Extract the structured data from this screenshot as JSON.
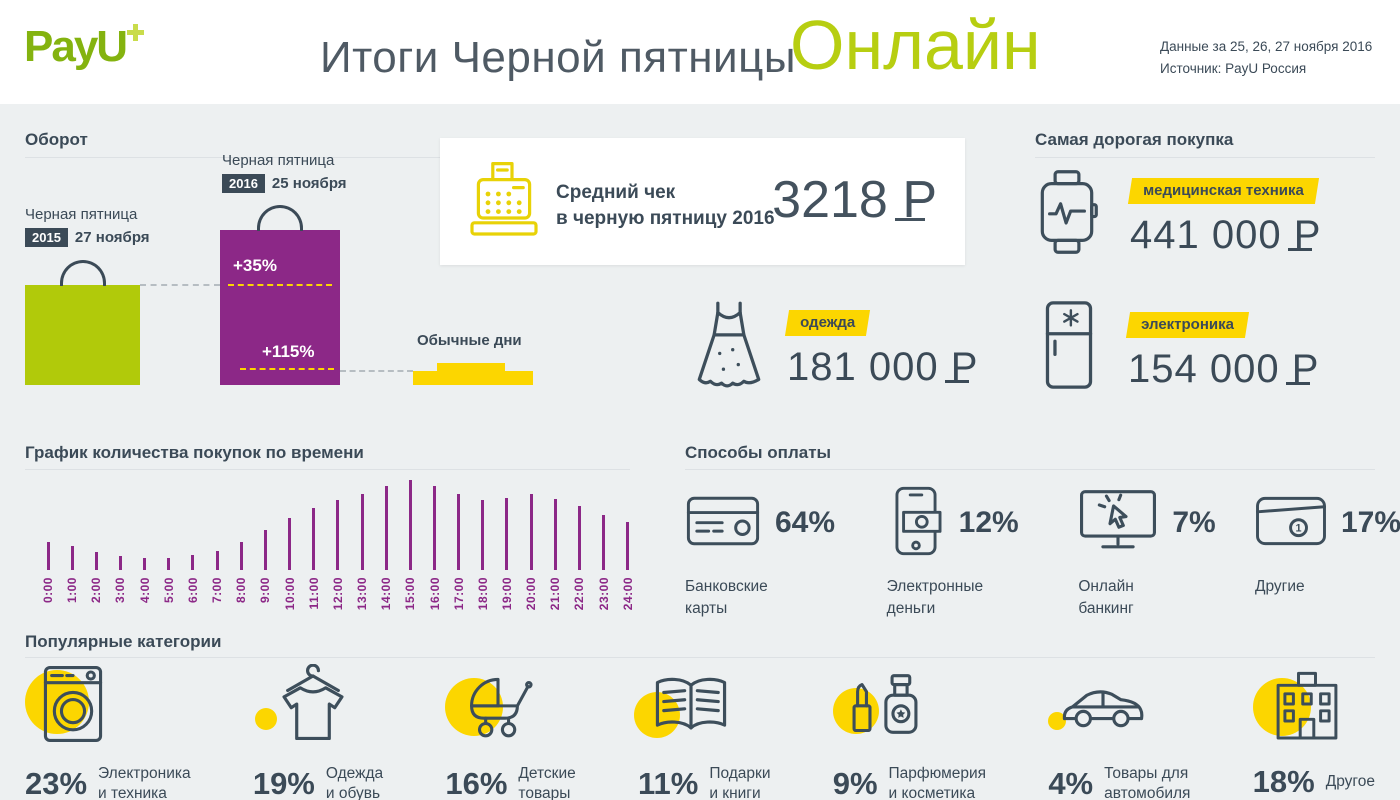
{
  "header": {
    "logo_text": "PayU",
    "title": "Итоги Черной пятницы",
    "title_accent": "Онлайн",
    "meta_line1": "Данные за 25, 26, 27 ноября 2016",
    "meta_line2": "Источник: PayU  Россия"
  },
  "turnover": {
    "title": "Оборот",
    "bf2015": {
      "label": "Черная пятница",
      "year": "2015",
      "date": "27 ноября"
    },
    "bf2016": {
      "label": "Черная пятница",
      "year": "2016",
      "date": "25 ноября"
    },
    "growth_vs_2015": "+35%",
    "growth_vs_regular": "+115%",
    "regular_label": "Обычные дни"
  },
  "avg_check": {
    "label_line1": "Средний чек",
    "label_line2": "в черную пятницу 2016",
    "amount": "3218",
    "currency": "₽",
    "icon": "cash-register-icon"
  },
  "most_expensive": {
    "title": "Самая дорогая покупка",
    "items": [
      {
        "category": "медицинская техника",
        "amount": "441 000",
        "currency": "₽",
        "icon": "smartwatch-icon"
      },
      {
        "category": "одежда",
        "amount": "181 000",
        "currency": "₽",
        "icon": "dress-icon"
      },
      {
        "category": "электроника",
        "amount": "154 000",
        "currency": "₽",
        "icon": "fridge-icon"
      }
    ]
  },
  "time_chart": {
    "title": "График количества покупок по времени"
  },
  "payments": {
    "title": "Способы оплаты",
    "items": [
      {
        "value": "64%",
        "label_line1": "Банковские",
        "label_line2": "карты",
        "icon": "bank-card-icon"
      },
      {
        "value": "12%",
        "label_line1": "Электронные",
        "label_line2": "деньги",
        "icon": "phone-money-icon"
      },
      {
        "value": "7%",
        "label_line1": "Онлайн",
        "label_line2": "банкинг",
        "icon": "online-banking-icon"
      },
      {
        "value": "17%",
        "label_line1": "Другие",
        "label_line2": "",
        "icon": "wallet-icon"
      }
    ]
  },
  "categories": {
    "title": "Популярные категории",
    "items": [
      {
        "value": "23%",
        "label_line1": "Электроника",
        "label_line2": "и техника",
        "icon": "washing-machine-icon"
      },
      {
        "value": "19%",
        "label_line1": "Одежда",
        "label_line2": "и обувь",
        "icon": "sweater-icon"
      },
      {
        "value": "16%",
        "label_line1": "Детские",
        "label_line2": "товары",
        "icon": "stroller-icon"
      },
      {
        "value": "11%",
        "label_line1": "Подарки",
        "label_line2": "и книги",
        "icon": "book-icon"
      },
      {
        "value": "9%",
        "label_line1": "Парфюмерия",
        "label_line2": "и косметика",
        "icon": "cosmetics-icon"
      },
      {
        "value": "4%",
        "label_line1": "Товары для",
        "label_line2": "автомобиля",
        "icon": "car-icon"
      },
      {
        "value": "18%",
        "label_line1": "Другое",
        "label_line2": "",
        "icon": "building-icon"
      }
    ]
  },
  "colors": {
    "accent_green": "#b1ca0a",
    "purple": "#8c2887",
    "yellow": "#fcd600",
    "navy": "#3b4a57",
    "background": "#edf0f1"
  },
  "chart_data": [
    {
      "type": "bar",
      "title": "Оборот",
      "categories": [
        "Черная пятница 2015 (27 ноября)",
        "Черная пятница 2016 (25 ноября)",
        "Обычные дни"
      ],
      "values": [
        100,
        155,
        14
      ],
      "unit": "relative bar height, px",
      "annotations": [
        "+35%",
        "+115%"
      ],
      "colors": [
        "#b1ca0a",
        "#8c2887",
        "#fcd600"
      ]
    },
    {
      "type": "bar",
      "title": "График количества покупок по времени",
      "categories": [
        "0:00",
        "1:00",
        "2:00",
        "3:00",
        "4:00",
        "5:00",
        "6:00",
        "7:00",
        "8:00",
        "9:00",
        "10:00",
        "11:00",
        "12:00",
        "13:00",
        "14:00",
        "15:00",
        "16:00",
        "17:00",
        "18:00",
        "19:00",
        "20:00",
        "21:00",
        "22:00",
        "23:00",
        "24:00"
      ],
      "values": [
        28,
        24,
        18,
        14,
        12,
        12,
        15,
        19,
        28,
        40,
        52,
        62,
        70,
        76,
        84,
        90,
        84,
        76,
        70,
        72,
        76,
        71,
        64,
        55,
        48
      ],
      "unit": "relative bar height, px",
      "bar_color": "#8c2887",
      "grid": false,
      "legend": false
    }
  ]
}
